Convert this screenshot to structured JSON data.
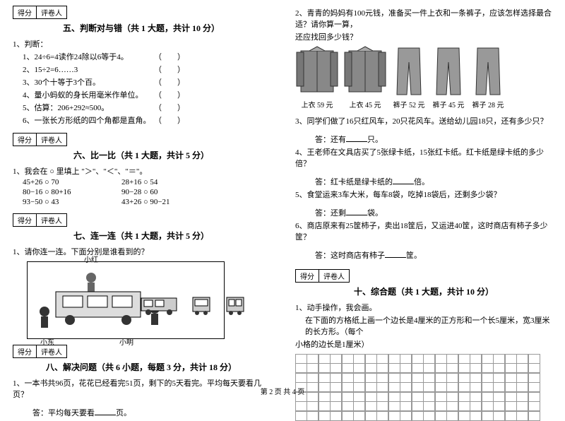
{
  "scorebox": {
    "c1": "得分",
    "c2": "评卷人"
  },
  "sec5": {
    "title": "五、判断对与错（共 1 大题，共计 10 分）",
    "lead": "1、判断：",
    "items": [
      "1、24÷6=4读作24除以6等于4。",
      "2、15÷2=6……3",
      "3、30个十等于3个百。",
      "4、量小蚂蚁的身长用毫米作单位。",
      "5、估算：206+292≈500。",
      "6、一张长方形纸的四个角都是直角。"
    ],
    "paren": "（　　）"
  },
  "sec6": {
    "title": "六、比一比（共 1 大题，共计 5 分）",
    "lead": "1、我会在 ○ 里填上 \"＞\"、\"＜\"、\"＝\"。",
    "rows": [
      [
        "45+26 ○ 70",
        "28+16 ○ 54"
      ],
      [
        "80−16 ○ 80+16",
        "90−28 ○ 60"
      ],
      [
        "93−50 ○ 43",
        "43+26 ○ 90−21"
      ]
    ]
  },
  "sec7": {
    "title": "七、连一连（共 1 大题，共计 5 分）",
    "lead": "1、请你连一连。下面分别是谁看到的？",
    "names": {
      "top": "小红",
      "left": "小东",
      "right": "小明"
    }
  },
  "sec8": {
    "title": "八、解决问题（共 6 小题，每题 3 分，共计 18 分）",
    "q1": "1、一本书共96页，花花已经看完51页，剩下的5天看完。平均每天要看几页？",
    "a1pre": "答：平均每天要看",
    "a1post": "页。"
  },
  "right": {
    "q2a": "2、青青的妈妈有100元钱，准备买一件上衣和一条裤子，应该怎样选择最合适？请你算一算，",
    "q2b": "还应找回多少钱？",
    "clothes": [
      {
        "label": "上衣 59 元",
        "type": "jacket"
      },
      {
        "label": "上衣 45 元",
        "type": "jacket"
      },
      {
        "label": "裤子 52 元",
        "type": "pants"
      },
      {
        "label": "裤子 45 元",
        "type": "pants"
      },
      {
        "label": "裤子 28 元",
        "type": "pants"
      }
    ],
    "q3": "3、同学们做了16只红风车，20只花风车。送给幼儿园18只，还有多少只？",
    "a3pre": "答：还有",
    "a3post": "只。",
    "q4": "4、王老师在文具店买了5张绿卡纸，15张红卡纸。红卡纸是绿卡纸的多少倍？",
    "a4pre": "答：红卡纸是绿卡纸的",
    "a4post": "倍。",
    "q5": "5、食堂运来3车大米，每车8袋，吃掉18袋后，还剩多少袋？",
    "a5pre": "答：还剩",
    "a5post": "袋。",
    "q6": "6、商店原来有25筐柿子，卖出18筐后，又运进40筐，这时商店有柿子多少筐？",
    "a6pre": "答：这时商店有柿子",
    "a6post": "筐。"
  },
  "sec10": {
    "title": "十、综合题（共 1 大题，共计 10 分）",
    "lead": "1、动手操作，我会画。",
    "desc1": "在下面的方格纸上画一个边长是4厘米的正方形和一个长5厘米，宽3厘米的长方形。（每个",
    "desc2": "小格的边长是1厘米）",
    "grid": {
      "cols": 21,
      "rows": 7
    }
  },
  "footer": "第 2 页 共 4 页"
}
